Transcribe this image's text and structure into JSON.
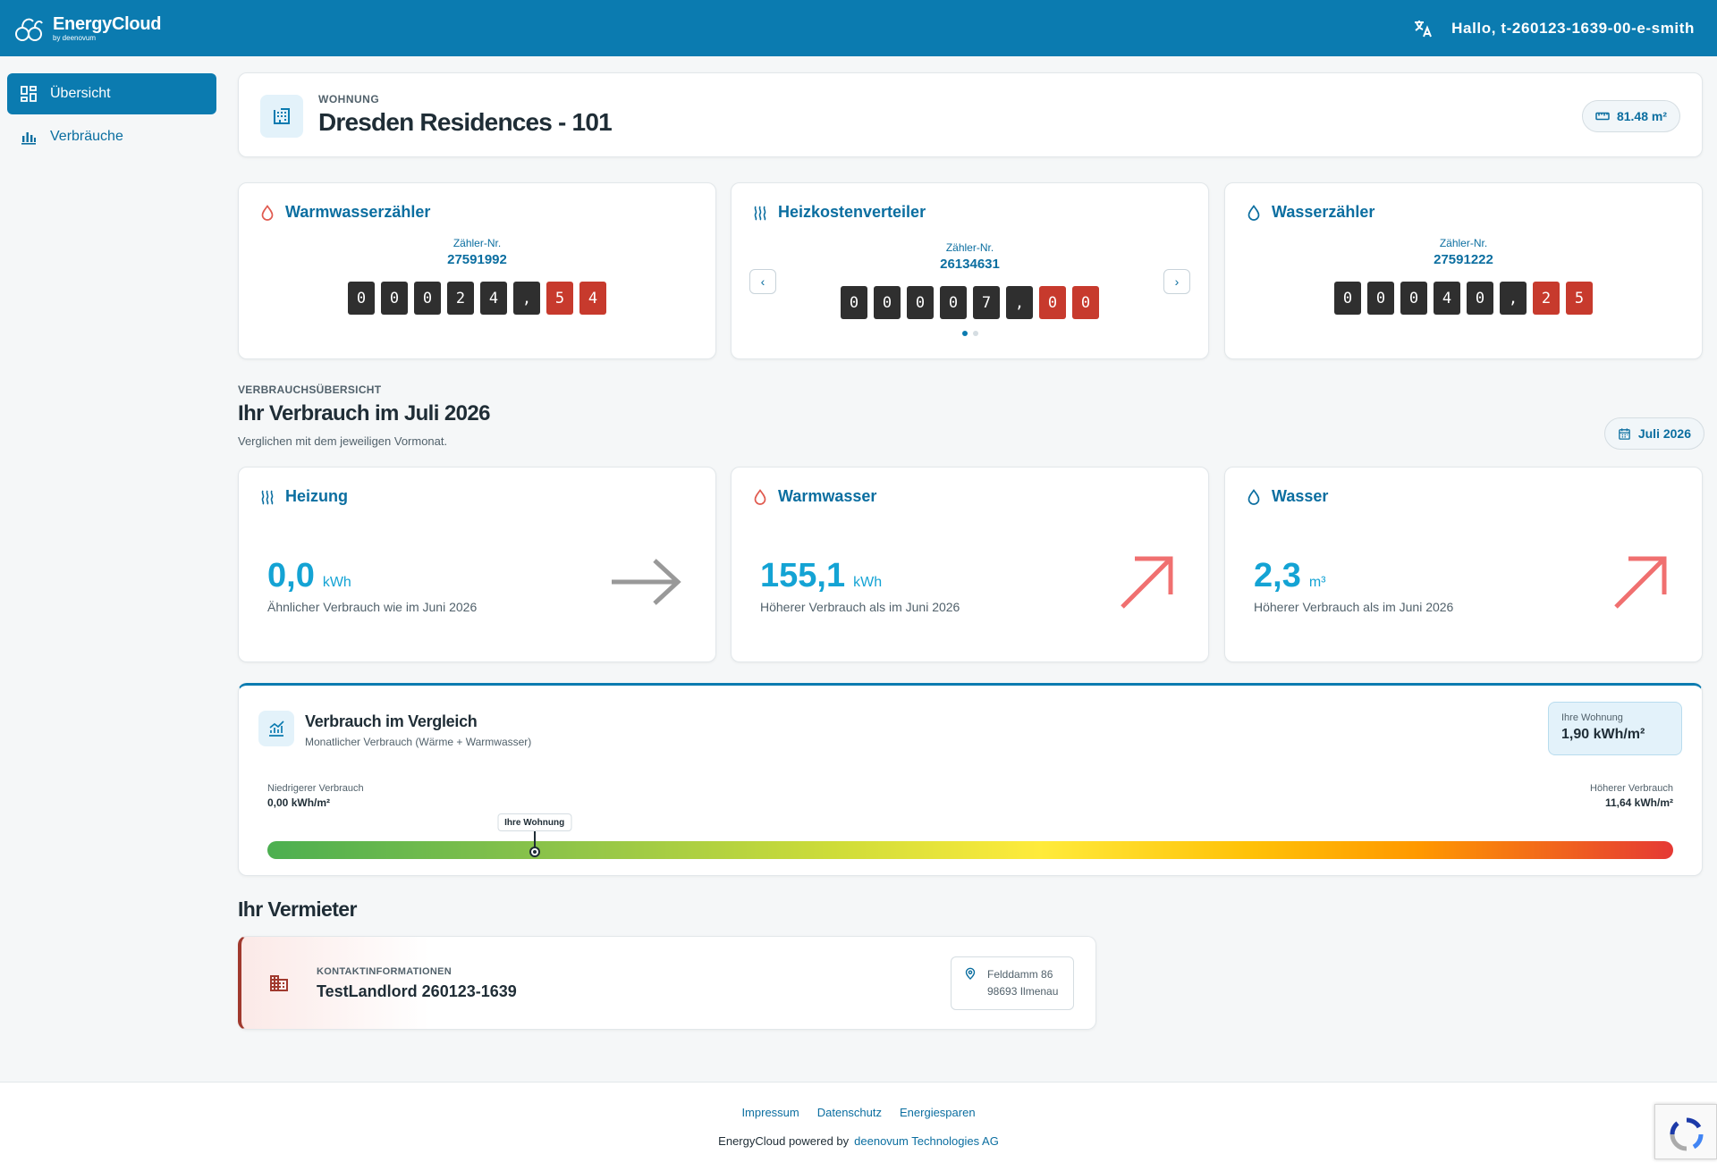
{
  "header": {
    "logo_title": "EnergyCloud",
    "logo_sub": "by deenovum",
    "greeting": "Hallo, t-260123-1639-00-e-smith"
  },
  "sidebar": {
    "items": [
      {
        "label": "Übersicht",
        "icon": "dashboard-icon",
        "active": true
      },
      {
        "label": "Verbräuche",
        "icon": "bar-chart-icon",
        "active": false
      }
    ]
  },
  "apartment": {
    "label": "WOHNUNG",
    "title": "Dresden Residences - 101",
    "area": "81.48 m²"
  },
  "meters": [
    {
      "title": "Warmwasserzähler",
      "icon": "drop-icon",
      "icon_color": "#e05a4f",
      "nr_label": "Zähler-Nr.",
      "nr": "27591992",
      "digits": [
        "0",
        "0",
        "0",
        "2",
        "4",
        ","
      ],
      "decimals": [
        "5",
        "4"
      ]
    },
    {
      "title": "Heizkostenverteiler",
      "icon": "heat-icon",
      "icon_color": "#0b6ea0",
      "nr_label": "Zähler-Nr.",
      "nr": "26134631",
      "digits": [
        "0",
        "0",
        "0",
        "0",
        "7",
        ","
      ],
      "decimals": [
        "0",
        "0"
      ]
    },
    {
      "title": "Wasserzähler",
      "icon": "drop-icon",
      "icon_color": "#0b6ea0",
      "nr_label": "Zähler-Nr.",
      "nr": "27591222",
      "digits": [
        "0",
        "0",
        "0",
        "4",
        "0",
        ","
      ],
      "decimals": [
        "2",
        "5"
      ]
    }
  ],
  "overview": {
    "label": "VERBRAUCHSÜBERSICHT",
    "title": "Ihr Verbrauch im Juli 2026",
    "subtitle": "Verglichen mit dem jeweiligen Vormonat.",
    "month": "Juli 2026"
  },
  "consumption": [
    {
      "title": "Heizung",
      "icon": "heat-icon",
      "value": "0,0",
      "unit": "kWh",
      "desc": "Ähnlicher Verbrauch wie im Juni 2026",
      "trend": "flat",
      "trend_color": "#999999"
    },
    {
      "title": "Warmwasser",
      "icon": "drop-icon",
      "value": "155,1",
      "unit": "kWh",
      "desc": "Höherer Verbrauch als im Juni 2026",
      "trend": "up",
      "trend_color": "#f07070"
    },
    {
      "title": "Wasser",
      "icon": "drop-icon",
      "value": "2,3",
      "unit": "m³",
      "desc": "Höherer Verbrauch als im Juni 2026",
      "trend": "up",
      "trend_color": "#f07070"
    }
  ],
  "comparison": {
    "title": "Verbrauch im Vergleich",
    "subtitle": "Monatlicher Verbrauch (Wärme + Warmwasser)",
    "badge_label": "Ihre Wohnung",
    "badge_value": "1,90 kWh/m²",
    "low_label": "Niedrigerer Verbrauch",
    "low_value": "0,00 kWh/m²",
    "high_label": "Höherer Verbrauch",
    "high_value": "11,64 kWh/m²",
    "marker_label": "Ihre Wohnung",
    "marker_fraction": 0.19
  },
  "landlord": {
    "section_title": "Ihr Vermieter",
    "label": "KONTAKTINFORMATIONEN",
    "name": "TestLandlord 260123-1639",
    "street": "Felddamm 86",
    "city": "98693 Ilmenau"
  },
  "footer": {
    "links": [
      "Impressum",
      "Datenschutz",
      "Energiesparen"
    ],
    "powered_prefix": "EnergyCloud powered by",
    "powered_link": "deenovum Technologies AG"
  },
  "colors": {
    "primary": "#0b7bb0",
    "accent_value": "#14a3d4",
    "landlord_accent": "#a0392e"
  }
}
